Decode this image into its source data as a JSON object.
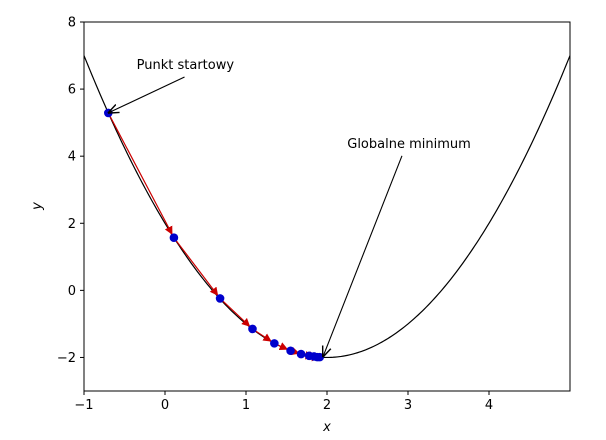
{
  "chart_data": {
    "type": "line",
    "title": "",
    "xlabel": "x",
    "ylabel": "y",
    "xlim": [
      -1,
      5
    ],
    "ylim": [
      -3,
      8
    ],
    "xticks": [
      -1,
      0,
      1,
      2,
      3,
      4
    ],
    "yticks": [
      -2,
      0,
      2,
      4,
      6,
      8
    ],
    "grid": false,
    "curve": {
      "equation": "y = (x - 2)^2 - 2",
      "x_range": [
        -1,
        5
      ],
      "color": "#000000"
    },
    "descent_path": {
      "point_color": "#0000cc",
      "arrow_color": "#cc0000",
      "points": [
        {
          "x": -0.7,
          "y": 5.29
        },
        {
          "x": 0.11,
          "y": 1.57
        },
        {
          "x": 0.68,
          "y": -0.24
        },
        {
          "x": 1.08,
          "y": -1.15
        },
        {
          "x": 1.35,
          "y": -1.58
        },
        {
          "x": 1.55,
          "y": -1.8
        },
        {
          "x": 1.68,
          "y": -1.9
        },
        {
          "x": 1.78,
          "y": -1.95
        },
        {
          "x": 1.84,
          "y": -1.97
        },
        {
          "x": 1.88,
          "y": -1.99
        },
        {
          "x": 1.91,
          "y": -1.99
        }
      ]
    },
    "annotations": [
      {
        "text": "Punkt startowy",
        "text_x": -0.35,
        "text_y": 6.6,
        "target_x": -0.7,
        "target_y": 5.29
      },
      {
        "text": "Globalne minimum",
        "text_x": 2.25,
        "text_y": 4.25,
        "target_x": 1.95,
        "target_y": -1.98
      }
    ]
  }
}
